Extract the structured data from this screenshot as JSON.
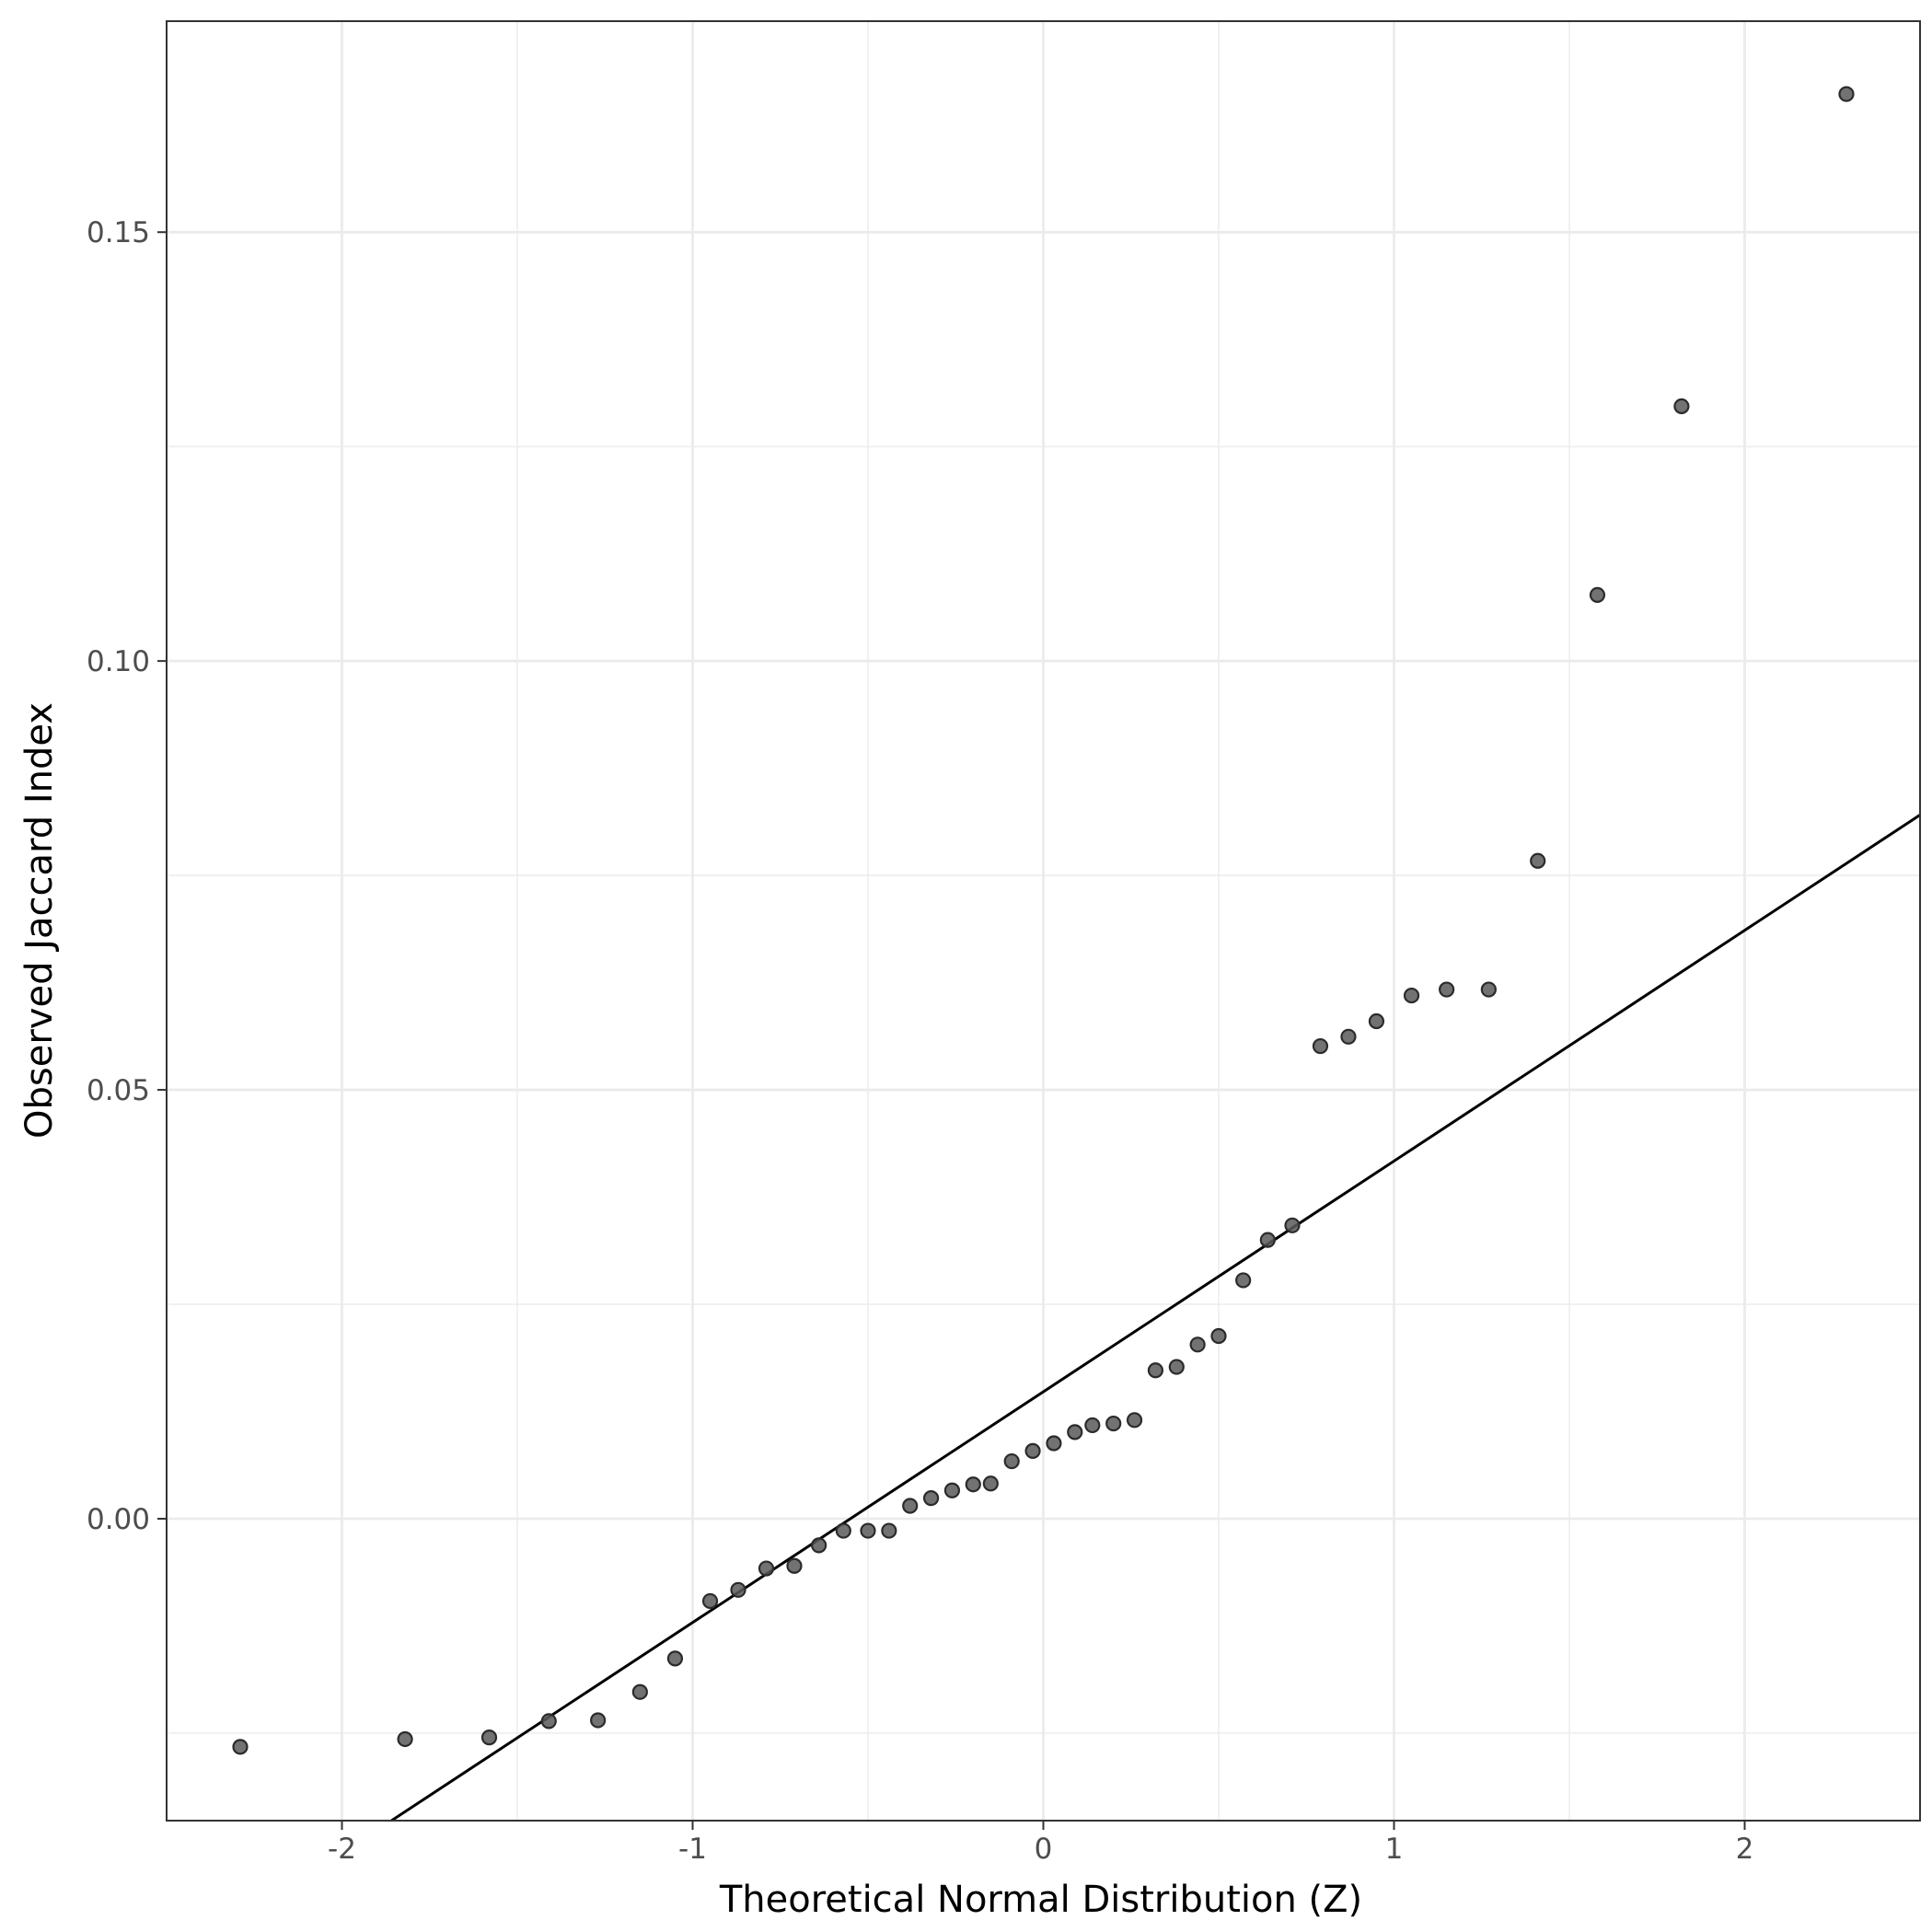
{
  "chart_data": {
    "type": "scatter",
    "title": "",
    "xlabel": "Theoretical Normal Distribution (Z)",
    "ylabel": "Observed Jaccard Index",
    "xlim": [
      -2.5,
      2.5
    ],
    "ylim": [
      -0.0352,
      0.1746
    ],
    "x_ticks": [
      -2,
      -1,
      0,
      1,
      2
    ],
    "x_tick_labels": [
      "-2",
      "-1",
      "0",
      "1",
      "2"
    ],
    "y_ticks": [
      0.0,
      0.05,
      0.1,
      0.15
    ],
    "y_tick_labels": [
      "0.00",
      "0.05",
      "0.10",
      "0.15"
    ],
    "grid": true,
    "legend": "none",
    "colors": {
      "points": "#595959",
      "line": "#000000",
      "grid": "#ebebeb",
      "panel_border": "#333333"
    },
    "points": [
      {
        "x": -2.29,
        "y": -0.0266
      },
      {
        "x": -1.82,
        "y": -0.0257
      },
      {
        "x": -1.58,
        "y": -0.0255
      },
      {
        "x": -1.41,
        "y": -0.0236
      },
      {
        "x": -1.27,
        "y": -0.0235
      },
      {
        "x": -1.15,
        "y": -0.0202
      },
      {
        "x": -1.05,
        "y": -0.0163
      },
      {
        "x": -0.95,
        "y": -0.0096
      },
      {
        "x": -0.87,
        "y": -0.0083
      },
      {
        "x": -0.79,
        "y": -0.0058
      },
      {
        "x": -0.71,
        "y": -0.0055
      },
      {
        "x": -0.64,
        "y": -0.0031
      },
      {
        "x": -0.57,
        "y": -0.0014
      },
      {
        "x": -0.5,
        "y": -0.0014
      },
      {
        "x": -0.44,
        "y": -0.0014
      },
      {
        "x": -0.38,
        "y": 0.0015
      },
      {
        "x": -0.32,
        "y": 0.0024
      },
      {
        "x": -0.26,
        "y": 0.0033
      },
      {
        "x": -0.2,
        "y": 0.004
      },
      {
        "x": -0.15,
        "y": 0.0041
      },
      {
        "x": -0.09,
        "y": 0.0067
      },
      {
        "x": -0.03,
        "y": 0.0079
      },
      {
        "x": 0.03,
        "y": 0.0088
      },
      {
        "x": 0.09,
        "y": 0.0101
      },
      {
        "x": 0.14,
        "y": 0.0109
      },
      {
        "x": 0.2,
        "y": 0.0111
      },
      {
        "x": 0.26,
        "y": 0.0115
      },
      {
        "x": 0.32,
        "y": 0.0173
      },
      {
        "x": 0.38,
        "y": 0.0177
      },
      {
        "x": 0.44,
        "y": 0.0203
      },
      {
        "x": 0.5,
        "y": 0.0213
      },
      {
        "x": 0.57,
        "y": 0.0278
      },
      {
        "x": 0.64,
        "y": 0.0325
      },
      {
        "x": 0.71,
        "y": 0.0342
      },
      {
        "x": 0.79,
        "y": 0.0551
      },
      {
        "x": 0.87,
        "y": 0.0562
      },
      {
        "x": 0.95,
        "y": 0.058
      },
      {
        "x": 1.05,
        "y": 0.061
      },
      {
        "x": 1.15,
        "y": 0.0617
      },
      {
        "x": 1.27,
        "y": 0.0617
      },
      {
        "x": 1.41,
        "y": 0.0767
      },
      {
        "x": 1.58,
        "y": 0.1077
      },
      {
        "x": 1.82,
        "y": 0.1297
      },
      {
        "x": 2.29,
        "y": 0.1661
      }
    ],
    "reference_line": {
      "intercept": 0.0148,
      "slope": 0.0269
    }
  }
}
